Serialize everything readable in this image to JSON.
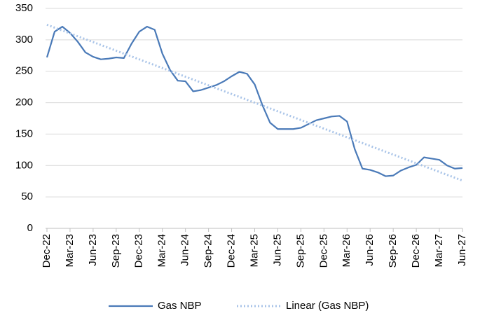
{
  "chart_data": {
    "type": "line",
    "categories": [
      "Dec-22",
      null,
      null,
      "Mar-23",
      null,
      null,
      "Jun-23",
      null,
      null,
      "Sep-23",
      null,
      null,
      "Dec-23",
      null,
      null,
      "Mar-24",
      null,
      null,
      "Jun-24",
      null,
      null,
      "Sep-24",
      null,
      null,
      "Dec-24",
      null,
      null,
      "Mar-25",
      null,
      null,
      "Jun-25",
      null,
      null,
      "Sep-25",
      null,
      null,
      "Dec-25",
      null,
      null,
      "Mar-26",
      null,
      null,
      "Jun-26",
      null,
      null,
      "Sep-26",
      null,
      null,
      "Dec-26",
      null,
      null,
      "Mar-27",
      null,
      null,
      "Jun-27"
    ],
    "series": [
      {
        "name": "Gas NBP",
        "color": "#4a7ab8",
        "values": [
          272,
          313,
          321,
          311,
          297,
          280,
          273,
          269,
          270,
          272,
          271,
          294,
          313,
          321,
          316,
          278,
          252,
          235,
          234,
          218,
          220,
          224,
          228,
          234,
          242,
          249,
          246,
          229,
          196,
          168,
          158,
          158,
          158,
          160,
          166,
          172,
          175,
          178,
          179,
          170,
          126,
          95,
          93,
          89,
          83,
          84,
          92,
          97,
          101,
          113,
          111,
          109,
          100,
          95,
          96
        ]
      }
    ],
    "trendline": {
      "name": "Linear (Gas NBP)",
      "color": "#a9c4e8",
      "start": 324,
      "end": 76
    },
    "ylim": [
      0,
      350
    ],
    "yticks": [
      0,
      50,
      100,
      150,
      200,
      250,
      300,
      350
    ],
    "grid": true,
    "legend": "bottom"
  }
}
